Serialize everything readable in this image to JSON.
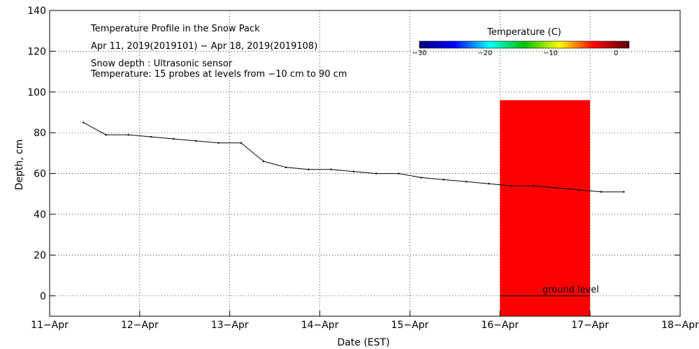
{
  "chart_data": {
    "type": "line",
    "title": "Temperature Profile in the Snow Pack",
    "subtitle": "Apr 11, 2019(2019101) − Apr 18, 2019(2019108)",
    "notes": [
      "Snow depth : Ultrasonic sensor",
      "Temperature: 15 probes at levels from −10 cm to 90 cm"
    ],
    "xlabel": "Date (EST)",
    "ylabel": "Depth, cm",
    "ylim": [
      -10,
      140
    ],
    "xlim": [
      "2019-04-11",
      "2019-04-18"
    ],
    "x_ticks": [
      "11−Apr",
      "12−Apr",
      "13−Apr",
      "14−Apr",
      "15−Apr",
      "16−Apr",
      "17−Apr",
      "18−Apr"
    ],
    "y_ticks": [
      0,
      20,
      40,
      60,
      80,
      100,
      120,
      140
    ],
    "grid": true,
    "series": [
      {
        "color": "#000000",
        "x": [
          "2019-04-11 09:00",
          "2019-04-11 15:00",
          "2019-04-11 21:00",
          "2019-04-12 03:00",
          "2019-04-12 09:00",
          "2019-04-12 15:00",
          "2019-04-12 21:00",
          "2019-04-13 03:00",
          "2019-04-13 09:00",
          "2019-04-13 15:00",
          "2019-04-13 21:00",
          "2019-04-14 03:00",
          "2019-04-14 09:00",
          "2019-04-14 15:00",
          "2019-04-14 21:00",
          "2019-04-15 03:00",
          "2019-04-15 09:00",
          "2019-04-15 15:00",
          "2019-04-15 21:00",
          "2019-04-16 03:00",
          "2019-04-16 09:00",
          "2019-04-16 15:00",
          "2019-04-16 21:00",
          "2019-04-17 03:00",
          "2019-04-17 09:00"
        ],
        "values": [
          85,
          79,
          79,
          78,
          77,
          76,
          75,
          75,
          66,
          63,
          62,
          62,
          61,
          60,
          60,
          58,
          57,
          56,
          55,
          54,
          54,
          53,
          52,
          51,
          51
        ]
      }
    ],
    "temperature_overlay": {
      "x_range": [
        "2019-04-16 00:00",
        "2019-04-17 00:00"
      ],
      "depth_range": [
        -10,
        96
      ],
      "base_value": -1,
      "cold_zone": {
        "x_range": [
          "2019-04-16 06:00",
          "2019-04-16 18:00"
        ],
        "depth_range": [
          28,
          96
        ],
        "value": -3
      }
    },
    "annotation": "ground level",
    "colorbar": {
      "title": "Temperature (C)",
      "range": [
        -30,
        2
      ],
      "tick_values": [
        -30,
        -20,
        -10,
        0
      ],
      "tick_labels": [
        "−30",
        "−20",
        "−10",
        "0"
      ],
      "colors": [
        "#00007a",
        "#0000ff",
        "#00ffff",
        "#00c000",
        "#ffff00",
        "#ff0000",
        "#5a0000"
      ]
    }
  }
}
